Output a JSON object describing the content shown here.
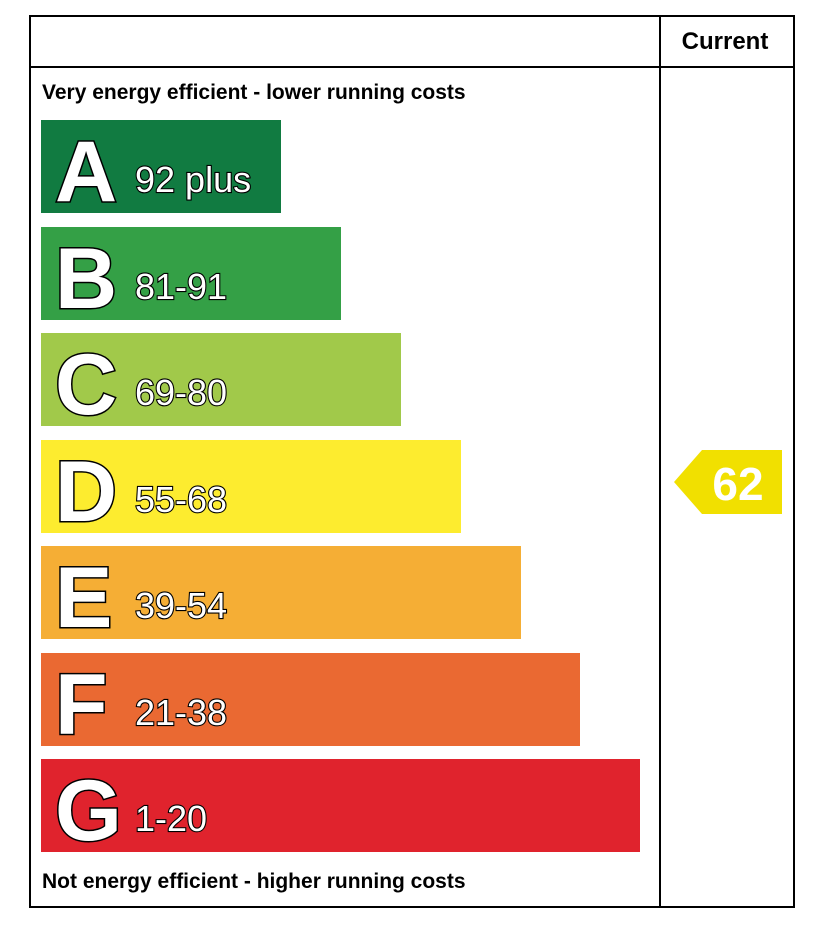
{
  "header": {
    "current_label": "Current"
  },
  "top_caption": "Very energy efficient - lower running costs",
  "bottom_caption": "Not energy efficient - higher running costs",
  "chart_data": {
    "type": "bar",
    "categories": [
      "A",
      "B",
      "C",
      "D",
      "E",
      "F",
      "G"
    ],
    "bands": [
      {
        "letter": "A",
        "range": "92 plus",
        "color": "#117b41"
      },
      {
        "letter": "B",
        "range": "81-91",
        "color": "#34a046"
      },
      {
        "letter": "C",
        "range": "69-80",
        "color": "#a1c94a"
      },
      {
        "letter": "D",
        "range": "55-68",
        "color": "#fdec2f"
      },
      {
        "letter": "E",
        "range": "39-54",
        "color": "#f5ae35"
      },
      {
        "letter": "F",
        "range": "21-38",
        "color": "#ea6932"
      },
      {
        "letter": "G",
        "range": "1-20",
        "color": "#e0232d"
      }
    ],
    "current": {
      "value": "62",
      "band": "D",
      "color": "#f1e000"
    }
  }
}
